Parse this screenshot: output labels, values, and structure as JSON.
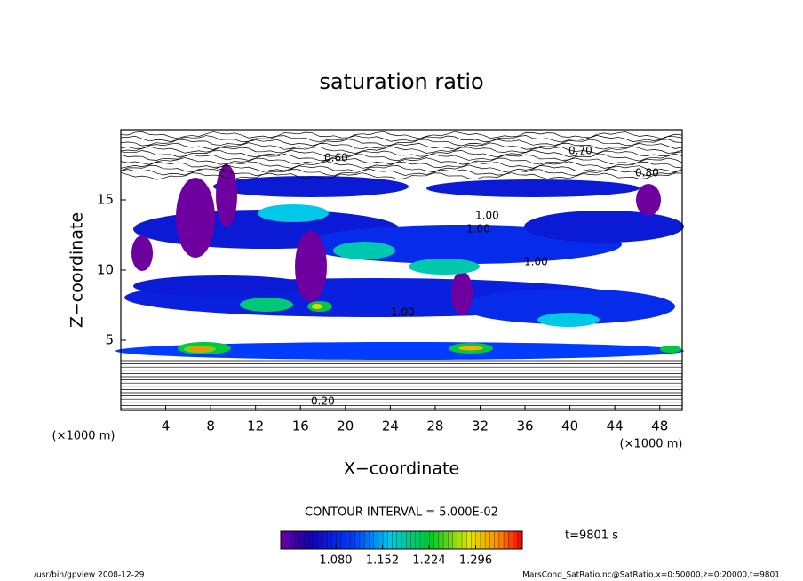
{
  "chart_data": {
    "type": "contour",
    "title": "saturation ratio",
    "x_label": "X−coordinate",
    "y_label": "Z−coordinate",
    "x_unit": "(×1000 m)",
    "y_unit": "(×1000 m)",
    "xlim": [
      0,
      50
    ],
    "ylim": [
      0,
      20
    ],
    "xticks": [
      4,
      8,
      12,
      16,
      20,
      24,
      28,
      32,
      36,
      40,
      44,
      48
    ],
    "yticks": [
      5,
      10,
      15
    ],
    "contour_interval": "CONTOUR INTERVAL = 5.000E-02",
    "contour_labels": [
      "0.60",
      "0.70",
      "0.80",
      "1.00",
      "1.00",
      "1.00",
      "1.00",
      "0.20"
    ],
    "colorbar": {
      "clim": [
        0.995,
        1.368
      ],
      "ticks": [
        {
          "value": 1.08,
          "label": "1.080"
        },
        {
          "value": 1.152,
          "label": "1.152"
        },
        {
          "value": 1.224,
          "label": "1.224"
        },
        {
          "value": 1.296,
          "label": "1.296"
        }
      ]
    },
    "time_label": "t=9801 s",
    "footer_left": "/usr/bin/gpview   2008-12-29",
    "footer_right": "MarsCond_SatRatio.nc@SatRatio,x=0:50000,z=0:20000,t=9801"
  }
}
